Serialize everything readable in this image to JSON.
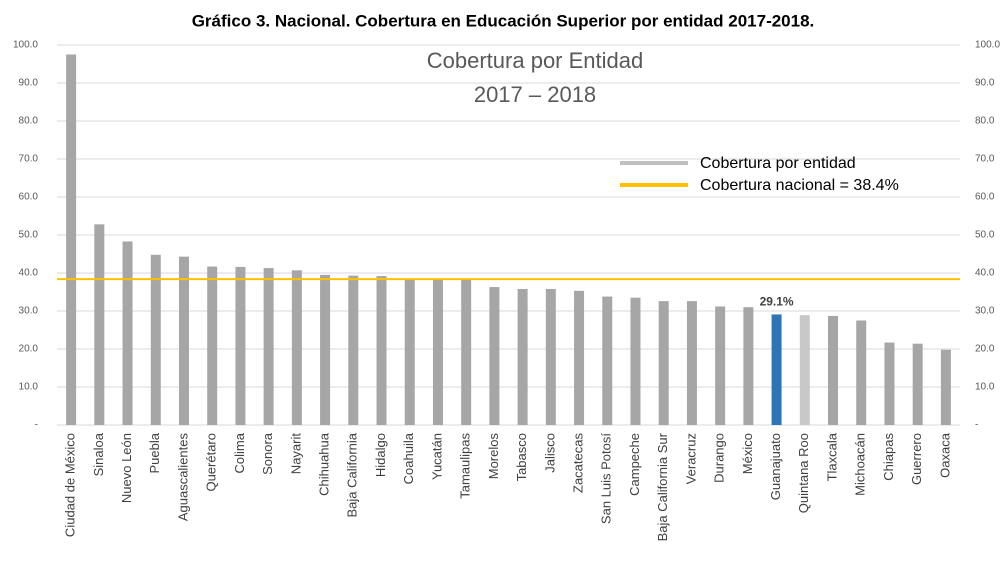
{
  "chart_data": {
    "type": "bar",
    "title": "Gráfico 3. Nacional. Cobertura en Educación Superior por entidad 2017-2018.",
    "inner_title": [
      "Cobertura por Entidad",
      "2017 – 2018"
    ],
    "categories": [
      "Ciudad de México",
      "Sinaloa",
      "Nuevo León",
      "Puebla",
      "Aguascalientes",
      "Querétaro",
      "Colima",
      "Sonora",
      "Nayarit",
      "Chihuahua",
      "Baja California",
      "Hidalgo",
      "Coahuila",
      "Yucatán",
      "Tamaulipas",
      "Morelos",
      "Tabasco",
      "Jalisco",
      "Zacatecas",
      "San Luis Potosí",
      "Campeche",
      "Baja California Sur",
      "Veracruz",
      "Durango",
      "México",
      "Guanajuato",
      "Quintana Roo",
      "Tlaxcala",
      "Michoacán",
      "Chiapas",
      "Guerrero",
      "Oaxaca"
    ],
    "series": [
      {
        "name": "Cobertura por entidad",
        "color": "#bfbfbf",
        "values": [
          97.5,
          52.8,
          48.3,
          44.8,
          44.3,
          41.7,
          41.6,
          41.3,
          40.7,
          39.5,
          39.3,
          39.2,
          38.3,
          38.2,
          38.2,
          36.3,
          35.8,
          35.8,
          35.3,
          33.8,
          33.5,
          32.6,
          32.6,
          31.2,
          31.0,
          29.1,
          28.9,
          28.7,
          27.5,
          21.7,
          21.4,
          19.8
        ],
        "colors": [
          "#a6a6a6",
          "#a6a6a6",
          "#a6a6a6",
          "#a6a6a6",
          "#a6a6a6",
          "#a6a6a6",
          "#a6a6a6",
          "#a6a6a6",
          "#a6a6a6",
          "#a6a6a6",
          "#a6a6a6",
          "#a6a6a6",
          "#a6a6a6",
          "#a6a6a6",
          "#a6a6a6",
          "#a6a6a6",
          "#a6a6a6",
          "#a6a6a6",
          "#a6a6a6",
          "#a6a6a6",
          "#a6a6a6",
          "#a6a6a6",
          "#a6a6a6",
          "#a6a6a6",
          "#a6a6a6",
          "#2e75b6",
          "#c8c8c8",
          "#a6a6a6",
          "#a6a6a6",
          "#a6a6a6",
          "#a6a6a6",
          "#a6a6a6"
        ],
        "value_labels": [
          null,
          null,
          null,
          null,
          null,
          null,
          null,
          null,
          null,
          null,
          null,
          null,
          null,
          null,
          null,
          null,
          null,
          null,
          null,
          null,
          null,
          null,
          null,
          null,
          null,
          "29.1%",
          null,
          null,
          null,
          null,
          null,
          null
        ]
      }
    ],
    "reference_line": {
      "name": "Cobertura nacional = 38.4%",
      "value": 38.4,
      "color": "#ffc000"
    },
    "ylim": [
      0,
      100
    ],
    "yticks": [
      {
        "value": 0,
        "label": "-"
      },
      {
        "value": 10,
        "label": "10.0"
      },
      {
        "value": 20,
        "label": "20.0"
      },
      {
        "value": 30,
        "label": "30.0"
      },
      {
        "value": 40,
        "label": "40.0"
      },
      {
        "value": 50,
        "label": "50.0"
      },
      {
        "value": 60,
        "label": "60.0"
      },
      {
        "value": 70,
        "label": "70.0"
      },
      {
        "value": 80,
        "label": "80.0"
      },
      {
        "value": 90,
        "label": "90.0"
      },
      {
        "value": 100,
        "label": "100.0"
      }
    ],
    "y2lim": [
      0,
      100
    ],
    "y2ticks": [
      {
        "value": 0,
        "label": "-"
      },
      {
        "value": 10,
        "label": "10.0"
      },
      {
        "value": 20,
        "label": "20.0"
      },
      {
        "value": 30,
        "label": "30.0"
      },
      {
        "value": 40,
        "label": "40.0"
      },
      {
        "value": 50,
        "label": "50.0"
      },
      {
        "value": 60,
        "label": "60.0"
      },
      {
        "value": 70,
        "label": "70.0"
      },
      {
        "value": 80,
        "label": "80.0"
      },
      {
        "value": 90,
        "label": "90.0"
      },
      {
        "value": 100,
        "label": "100.0"
      }
    ],
    "grid": true
  }
}
